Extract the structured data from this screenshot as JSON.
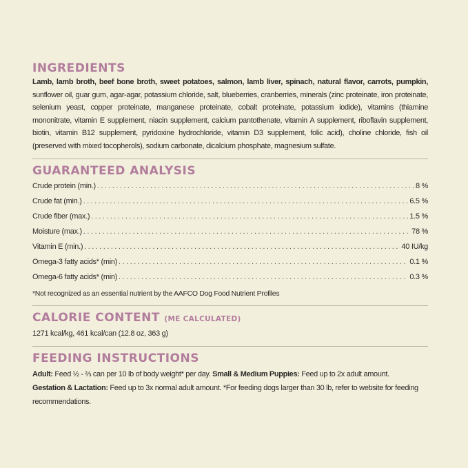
{
  "ingredients": {
    "title": "Ingredients",
    "bold_text": "Lamb, lamb broth, beef bone broth, sweet potatoes, salmon, lamb liver, spinach, natural flavor, carrots, pumpkin,",
    "text": " sunflower oil, guar gum, agar-agar, potassium chloride, salt, blueberries, cranberries, minerals (zinc proteinate, iron proteinate, selenium yeast, copper proteinate, manganese proteinate, cobalt proteinate, potassium iodide), vitamins (thiamine mononitrate, vitamin E supplement, niacin supplement, calcium pantothenate, vitamin A supplement, riboflavin supplement, biotin, vitamin B12 supplement, pyridoxine hydrochloride, vitamin D3 supplement, folic acid), choline chloride, fish oil (preserved with mixed tocopherols), sodium carbonate, dicalcium phosphate, magnesium sulfate."
  },
  "analysis": {
    "title": "Guaranteed Analysis",
    "rows": [
      {
        "label": "Crude protein (min.)",
        "value": "8 %"
      },
      {
        "label": "Crude fat (min.)",
        "value": "6.5 %"
      },
      {
        "label": "Crude fiber (max.)",
        "value": "1.5 %"
      },
      {
        "label": "Moisture (max.)",
        "value": "78 %"
      },
      {
        "label": "Vitamin E (min.)",
        "value": "40 IU/kg"
      },
      {
        "label": "Omega-3 fatty acids* (min)",
        "value": "0.1 %"
      },
      {
        "label": "Omega-6 fatty acids* (min)",
        "value": "0.3 %"
      }
    ],
    "footnote": "*Not recognized as an essential nutrient by the AAFCO Dog Food Nutrient Profiles"
  },
  "calorie": {
    "title": "Calorie Content",
    "subtitle": "(ME calculated)",
    "text": "1271 kcal/kg, 461 kcal/can (12.8 oz, 363 g)"
  },
  "feeding": {
    "title": "Feeding Instructions",
    "adult_label": "Adult:",
    "adult_text": " Feed ½ - ⅔ can per 10 lb of body weight* per day. ",
    "puppies_label": "Small & Medium Puppies:",
    "puppies_text": " Feed up to 2x adult amount.",
    "gestation_label": "Gestation & Lactation:",
    "gestation_text": " Feed up to 3x normal adult amount. *For feeding dogs larger than 30 lb, refer to website for feeding recommendations."
  },
  "colors": {
    "background": "#f3efdd",
    "heading": "#b27d9d",
    "text": "#2b2a28"
  }
}
